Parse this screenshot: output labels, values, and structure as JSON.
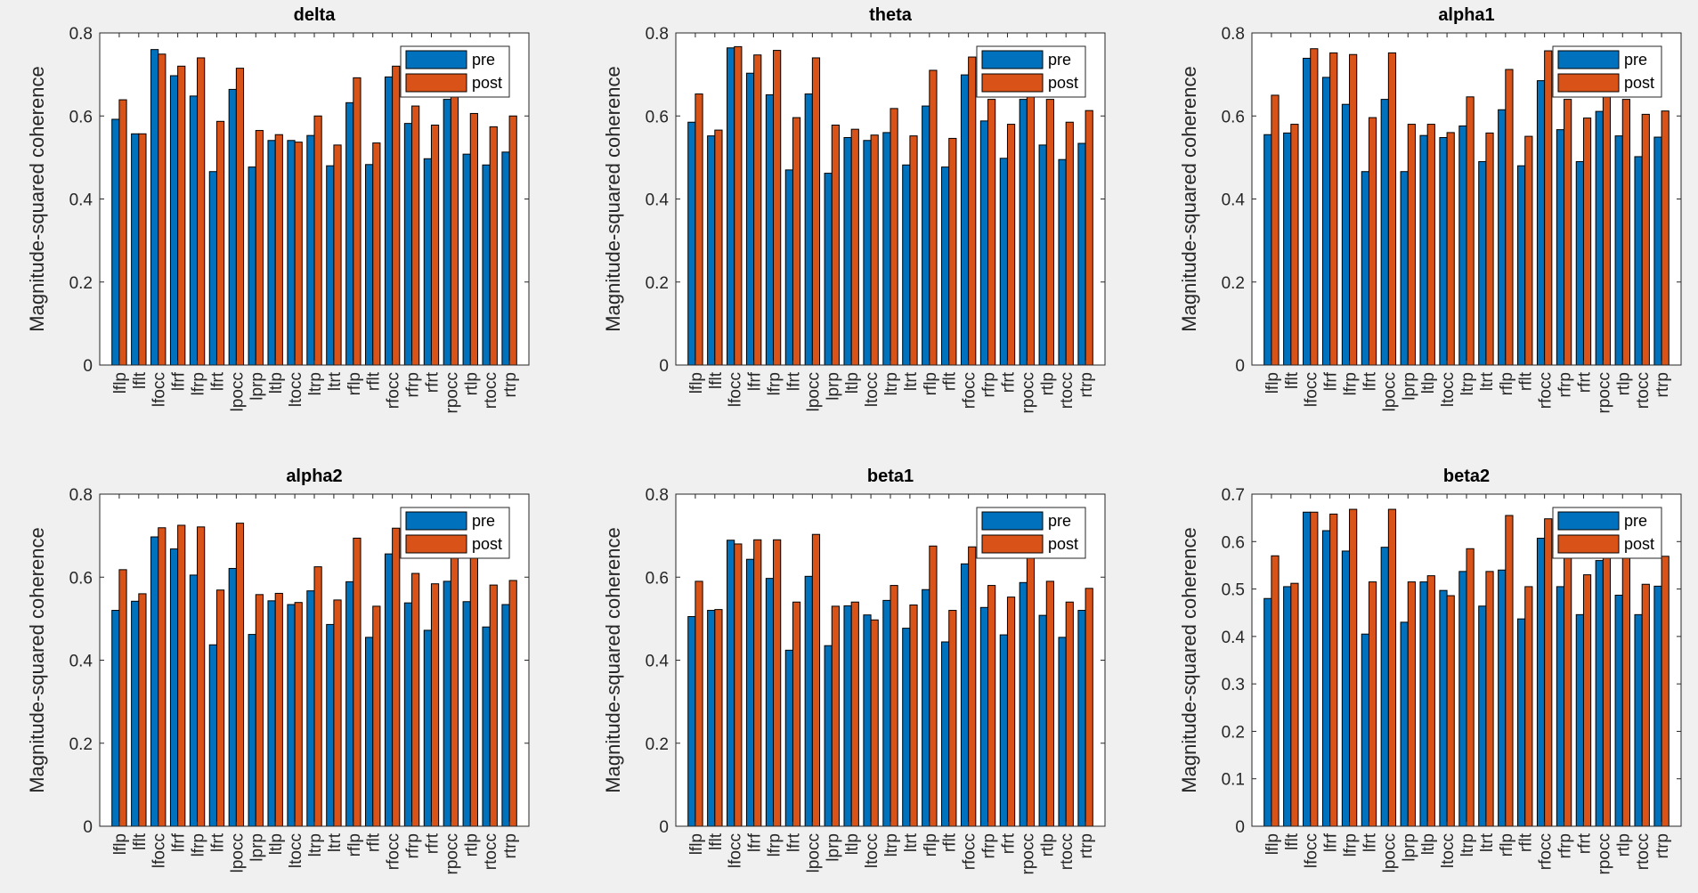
{
  "chart_data": [
    {
      "type": "bar",
      "title": "delta",
      "ylabel": "Magnitude-squared coherence",
      "ylim": [
        0,
        0.8
      ],
      "yticks": [
        "0",
        "0.2",
        "0.4",
        "0.6",
        "0.8"
      ],
      "categories": [
        "lflp",
        "lflt",
        "lfocc",
        "lfrf",
        "lfrp",
        "lfrt",
        "lpocc",
        "lprp",
        "ltlp",
        "ltocc",
        "ltrp",
        "ltrt",
        "rflp",
        "rflt",
        "rfocc",
        "rfrp",
        "rfrt",
        "rpocc",
        "rtlp",
        "rtocc",
        "rtrp"
      ],
      "series": [
        {
          "name": "pre",
          "color": "#0072BD",
          "values": [
            0.592,
            0.557,
            0.76,
            0.697,
            0.648,
            0.466,
            0.664,
            0.477,
            0.541,
            0.541,
            0.553,
            0.48,
            0.632,
            0.483,
            0.694,
            0.582,
            0.497,
            0.64,
            0.508,
            0.482,
            0.513
          ]
        },
        {
          "name": "post",
          "color": "#D95319",
          "values": [
            0.639,
            0.557,
            0.749,
            0.72,
            0.74,
            0.587,
            0.715,
            0.565,
            0.555,
            0.537,
            0.6,
            0.53,
            0.692,
            0.535,
            0.72,
            0.624,
            0.578,
            0.66,
            0.606,
            0.574,
            0.6
          ]
        }
      ],
      "legend_position": "top-right"
    },
    {
      "type": "bar",
      "title": "theta",
      "ylabel": "Magnitude-squared coherence",
      "ylim": [
        0,
        0.8
      ],
      "yticks": [
        "0",
        "0.2",
        "0.4",
        "0.6",
        "0.8"
      ],
      "categories": [
        "lflp",
        "lflt",
        "lfocc",
        "lfrf",
        "lfrp",
        "lfrt",
        "lpocc",
        "lprp",
        "ltlp",
        "ltocc",
        "ltrp",
        "ltrt",
        "rflp",
        "rflt",
        "rfocc",
        "rfrp",
        "rfrt",
        "rpocc",
        "rtlp",
        "rtocc",
        "rtrp"
      ],
      "series": [
        {
          "name": "pre",
          "color": "#0072BD",
          "values": [
            0.585,
            0.552,
            0.764,
            0.703,
            0.651,
            0.47,
            0.653,
            0.462,
            0.548,
            0.541,
            0.56,
            0.482,
            0.624,
            0.477,
            0.699,
            0.588,
            0.498,
            0.64,
            0.53,
            0.495,
            0.534
          ]
        },
        {
          "name": "post",
          "color": "#D95319",
          "values": [
            0.653,
            0.566,
            0.767,
            0.747,
            0.758,
            0.596,
            0.74,
            0.578,
            0.568,
            0.554,
            0.618,
            0.552,
            0.71,
            0.546,
            0.742,
            0.64,
            0.58,
            0.66,
            0.64,
            0.585,
            0.613
          ]
        }
      ],
      "legend_position": "top-right"
    },
    {
      "type": "bar",
      "title": "alpha1",
      "ylabel": "Magnitude-squared coherence",
      "ylim": [
        0,
        0.8
      ],
      "yticks": [
        "0",
        "0.2",
        "0.4",
        "0.6",
        "0.8"
      ],
      "categories": [
        "lflp",
        "lflt",
        "lfocc",
        "lfrf",
        "lfrp",
        "lfrt",
        "lpocc",
        "lprp",
        "ltlp",
        "ltocc",
        "ltrp",
        "ltrt",
        "rflp",
        "rflt",
        "rfocc",
        "rfrp",
        "rfrt",
        "rpocc",
        "rtlp",
        "rtocc",
        "rtrp"
      ],
      "series": [
        {
          "name": "pre",
          "color": "#0072BD",
          "values": [
            0.555,
            0.559,
            0.739,
            0.693,
            0.628,
            0.466,
            0.64,
            0.466,
            0.553,
            0.548,
            0.576,
            0.49,
            0.615,
            0.48,
            0.685,
            0.567,
            0.49,
            0.611,
            0.552,
            0.502,
            0.549
          ]
        },
        {
          "name": "post",
          "color": "#D95319",
          "values": [
            0.65,
            0.58,
            0.762,
            0.752,
            0.748,
            0.596,
            0.752,
            0.58,
            0.58,
            0.56,
            0.646,
            0.559,
            0.712,
            0.551,
            0.757,
            0.64,
            0.595,
            0.65,
            0.64,
            0.604,
            0.612
          ]
        }
      ],
      "legend_position": "top-right"
    },
    {
      "type": "bar",
      "title": "alpha2",
      "ylabel": "Magnitude-squared coherence",
      "ylim": [
        0,
        0.8
      ],
      "yticks": [
        "0",
        "0.2",
        "0.4",
        "0.6",
        "0.8"
      ],
      "categories": [
        "lflp",
        "lflt",
        "lfocc",
        "lfrf",
        "lfrp",
        "lfrt",
        "lpocc",
        "lprp",
        "ltlp",
        "ltocc",
        "ltrp",
        "ltrt",
        "rflp",
        "rflt",
        "rfocc",
        "rfrp",
        "rfrt",
        "rpocc",
        "rtlp",
        "rtocc",
        "rtrp"
      ],
      "series": [
        {
          "name": "pre",
          "color": "#0072BD",
          "values": [
            0.52,
            0.542,
            0.697,
            0.668,
            0.605,
            0.437,
            0.621,
            0.462,
            0.543,
            0.534,
            0.567,
            0.486,
            0.589,
            0.455,
            0.656,
            0.538,
            0.472,
            0.59,
            0.541,
            0.48,
            0.534
          ]
        },
        {
          "name": "post",
          "color": "#D95319",
          "values": [
            0.618,
            0.56,
            0.719,
            0.725,
            0.721,
            0.569,
            0.73,
            0.558,
            0.561,
            0.539,
            0.625,
            0.545,
            0.694,
            0.53,
            0.718,
            0.609,
            0.584,
            0.65,
            0.65,
            0.581,
            0.592
          ]
        }
      ],
      "legend_position": "top-right"
    },
    {
      "type": "bar",
      "title": "beta1",
      "ylabel": "Magnitude-squared coherence",
      "ylim": [
        0,
        0.8
      ],
      "yticks": [
        "0",
        "0.2",
        "0.4",
        "0.6",
        "0.8"
      ],
      "categories": [
        "lflp",
        "lflt",
        "lfocc",
        "lfrf",
        "lfrp",
        "lfrt",
        "lpocc",
        "lprp",
        "ltlp",
        "ltocc",
        "ltrp",
        "ltrt",
        "rflp",
        "rflt",
        "rfocc",
        "rfrp",
        "rfrt",
        "rpocc",
        "rtlp",
        "rtocc",
        "rtrp"
      ],
      "series": [
        {
          "name": "pre",
          "color": "#0072BD",
          "values": [
            0.505,
            0.52,
            0.689,
            0.643,
            0.597,
            0.424,
            0.602,
            0.435,
            0.531,
            0.509,
            0.544,
            0.477,
            0.57,
            0.444,
            0.632,
            0.527,
            0.461,
            0.587,
            0.508,
            0.455,
            0.52
          ]
        },
        {
          "name": "post",
          "color": "#D95319",
          "values": [
            0.59,
            0.522,
            0.68,
            0.69,
            0.69,
            0.54,
            0.703,
            0.53,
            0.54,
            0.497,
            0.58,
            0.533,
            0.675,
            0.52,
            0.673,
            0.58,
            0.552,
            0.65,
            0.59,
            0.54,
            0.573
          ]
        }
      ],
      "legend_position": "top-right"
    },
    {
      "type": "bar",
      "title": "beta2",
      "ylabel": "Magnitude-squared coherence",
      "ylim": [
        0,
        0.7
      ],
      "yticks": [
        "0",
        "0.1",
        "0.2",
        "0.3",
        "0.4",
        "0.5",
        "0.6",
        "0.7"
      ],
      "categories": [
        "lflp",
        "lflt",
        "lfocc",
        "lfrf",
        "lfrp",
        "lfrt",
        "lpocc",
        "lprp",
        "ltlp",
        "ltocc",
        "ltrp",
        "ltrt",
        "rflp",
        "rflt",
        "rfocc",
        "rfrp",
        "rfrt",
        "rpocc",
        "rtlp",
        "rtocc",
        "rtrp"
      ],
      "series": [
        {
          "name": "pre",
          "color": "#0072BD",
          "values": [
            0.48,
            0.505,
            0.662,
            0.623,
            0.58,
            0.405,
            0.588,
            0.43,
            0.515,
            0.497,
            0.537,
            0.464,
            0.54,
            0.437,
            0.607,
            0.505,
            0.446,
            0.56,
            0.487,
            0.446,
            0.506
          ]
        },
        {
          "name": "post",
          "color": "#D95319",
          "values": [
            0.57,
            0.512,
            0.662,
            0.658,
            0.668,
            0.515,
            0.668,
            0.515,
            0.528,
            0.486,
            0.585,
            0.537,
            0.655,
            0.505,
            0.648,
            0.565,
            0.53,
            0.59,
            0.59,
            0.51,
            0.569
          ]
        }
      ],
      "legend_position": "top-right"
    }
  ]
}
